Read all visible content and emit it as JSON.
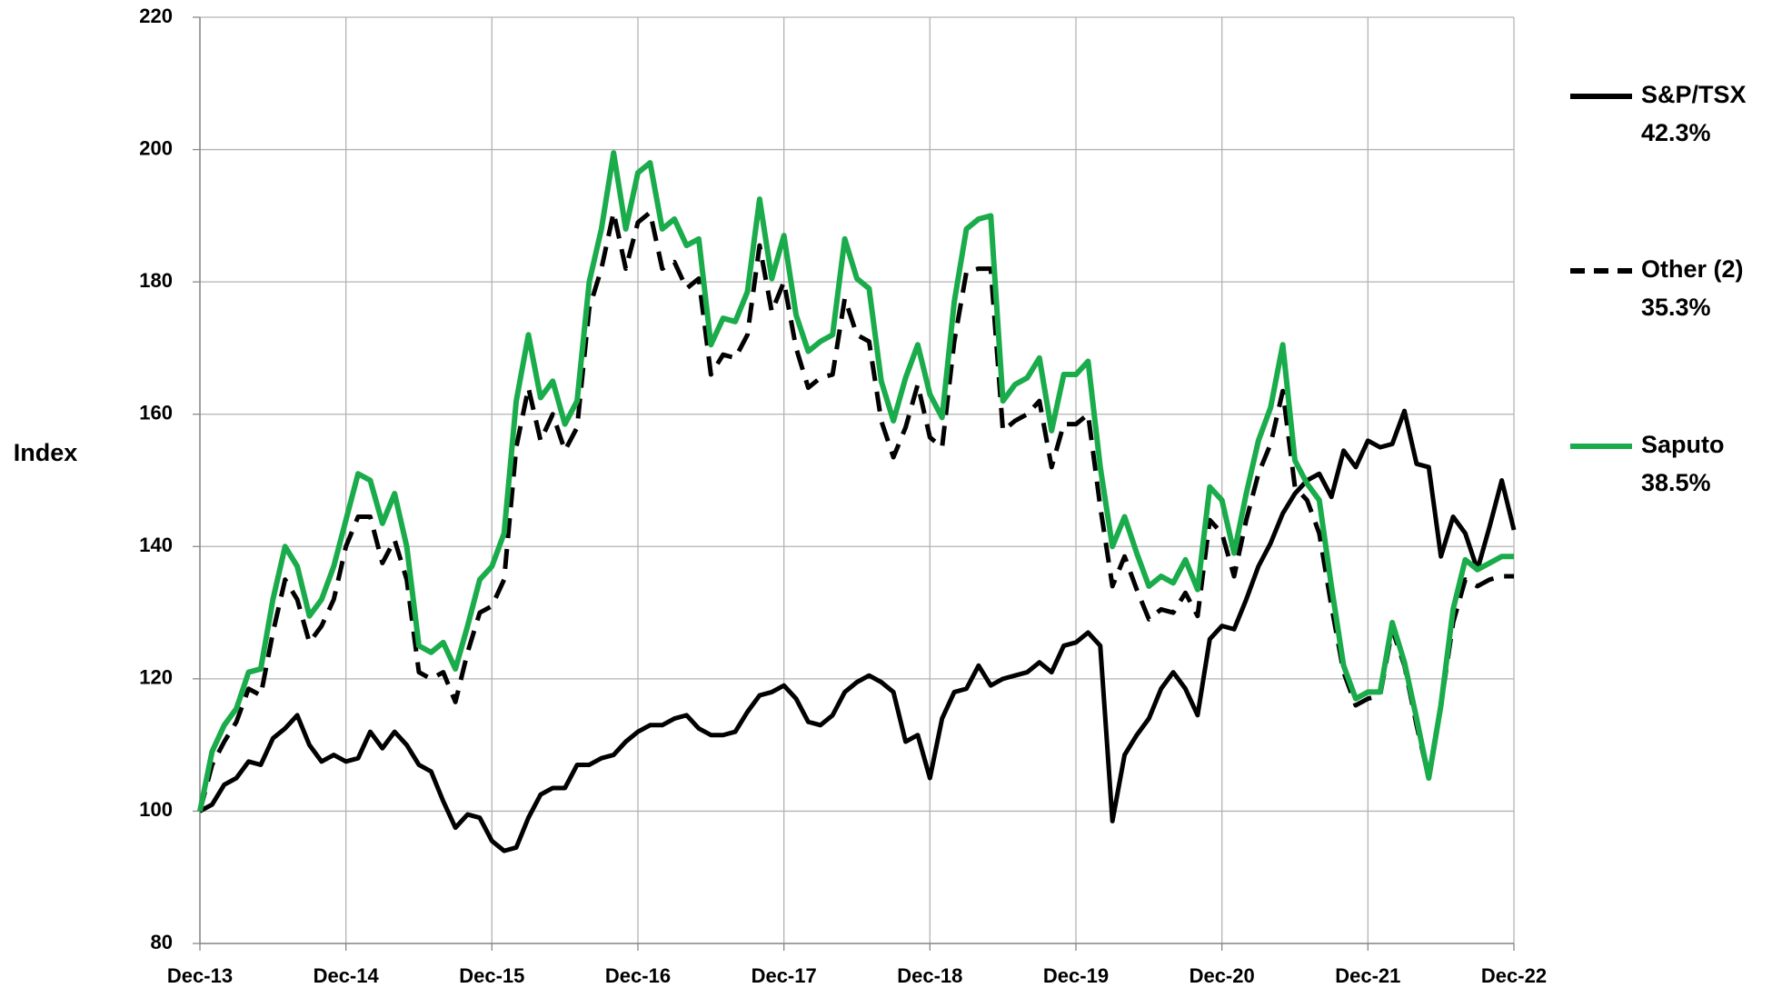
{
  "chart_data": {
    "type": "line",
    "y_label": "Index",
    "categories": [
      "Dec-13",
      null,
      null,
      null,
      null,
      null,
      null,
      null,
      null,
      null,
      null,
      null,
      "Dec-14",
      null,
      null,
      null,
      null,
      null,
      null,
      null,
      null,
      null,
      null,
      null,
      "Dec-15",
      null,
      null,
      null,
      null,
      null,
      null,
      null,
      null,
      null,
      null,
      null,
      "Dec-16",
      null,
      null,
      null,
      null,
      null,
      null,
      null,
      null,
      null,
      null,
      null,
      "Dec-17",
      null,
      null,
      null,
      null,
      null,
      null,
      null,
      null,
      null,
      null,
      null,
      "Dec-18",
      null,
      null,
      null,
      null,
      null,
      null,
      null,
      null,
      null,
      null,
      null,
      "Dec-19",
      null,
      null,
      null,
      null,
      null,
      null,
      null,
      null,
      null,
      null,
      null,
      "Dec-20",
      null,
      null,
      null,
      null,
      null,
      null,
      null,
      null,
      null,
      null,
      null,
      "Dec-21",
      null,
      null,
      null,
      null,
      null,
      null,
      null,
      null,
      null,
      null,
      null,
      "Dec-22"
    ],
    "series": [
      {
        "name": "S&P/TSX",
        "label": "42.3%",
        "color": "#000000",
        "style": "solid",
        "values": [
          100,
          101,
          104,
          105,
          107.5,
          107,
          111,
          112.5,
          114.5,
          110,
          107.5,
          108.5,
          107.5,
          108,
          112,
          109.5,
          112,
          110,
          107,
          106,
          101.5,
          97.5,
          99.5,
          99,
          95.5,
          94,
          94.5,
          99,
          102.5,
          103.5,
          103.5,
          107,
          107,
          108,
          108.5,
          110.5,
          112,
          113,
          113,
          114,
          114.5,
          112.5,
          111.5,
          111.5,
          112,
          115,
          117.5,
          118,
          119,
          117,
          113.5,
          113,
          114.5,
          118,
          119.5,
          120.5,
          119.5,
          118,
          110.5,
          111.5,
          105,
          114,
          118,
          118.5,
          122,
          119,
          120,
          120.5,
          121,
          122.5,
          121,
          125,
          125.5,
          127,
          125,
          98.5,
          108.5,
          111.5,
          114,
          118.5,
          121,
          118.5,
          114.5,
          126,
          128,
          127.5,
          132,
          137,
          140.5,
          145,
          148,
          150,
          151,
          147.5,
          154.5,
          152,
          156,
          155,
          155.5,
          160.5,
          152.5,
          152,
          138.5,
          144.5,
          142,
          136.5,
          143,
          150,
          142.5
        ]
      },
      {
        "name": "Other (2)",
        "label": "35.3%",
        "color": "#000000",
        "style": "dashed",
        "values": [
          100,
          107,
          110.5,
          113.5,
          118.5,
          117.5,
          127,
          135,
          132,
          125.5,
          128,
          132,
          140,
          144.5,
          144.5,
          137.5,
          141,
          135,
          121,
          120,
          121,
          116.5,
          124,
          130,
          131,
          135,
          155,
          164,
          156,
          160,
          154.5,
          158,
          176,
          182,
          190.5,
          182,
          189,
          190.5,
          182,
          183,
          179,
          180.5,
          166,
          169,
          168.5,
          172,
          185.5,
          175.5,
          180,
          170,
          164,
          165.5,
          166,
          177.5,
          172,
          171,
          159,
          153.5,
          158,
          164.5,
          156.5,
          155,
          171,
          181.5,
          182,
          182,
          157.5,
          159,
          160,
          162,
          152,
          158.5,
          158.5,
          160,
          146,
          134,
          138.5,
          133.5,
          129,
          130.5,
          130,
          133,
          129.5,
          144,
          142,
          135.5,
          144,
          151,
          155.5,
          163.5,
          149,
          147,
          142,
          131,
          121,
          116,
          117,
          117.5,
          127.5,
          122,
          113,
          105,
          116,
          128.5,
          135,
          134,
          135,
          135.5,
          135.5
        ]
      },
      {
        "name": "Saputo",
        "label": "38.5%",
        "color": "#1aab4b",
        "style": "solid",
        "values": [
          100,
          109,
          113,
          115.5,
          121,
          121.5,
          132,
          140,
          137,
          129.5,
          132,
          137,
          144,
          151,
          150,
          143.5,
          148,
          140,
          125,
          124,
          125.5,
          121.5,
          128,
          135,
          137,
          142,
          162,
          172,
          162.5,
          165,
          158.5,
          162,
          180,
          188,
          199.5,
          188,
          196.5,
          198,
          188,
          189.5,
          185.5,
          186.5,
          170.5,
          174.5,
          174,
          178.5,
          192.5,
          180.5,
          187,
          175,
          169.5,
          171,
          172,
          186.5,
          180.5,
          179,
          165,
          159,
          165.5,
          170.5,
          163,
          159.5,
          177,
          188,
          189.5,
          190,
          162,
          164.5,
          165.5,
          168.5,
          157.5,
          166,
          166,
          168,
          152,
          140,
          144.5,
          139,
          134,
          135.5,
          134.5,
          138,
          133.5,
          149,
          147,
          139,
          148,
          156,
          161,
          170.5,
          153,
          149.5,
          147,
          134,
          122,
          117,
          118,
          118,
          128.5,
          122.5,
          114,
          105,
          116,
          130.5,
          138,
          136.5,
          137.5,
          138.5,
          138.5
        ]
      }
    ],
    "ylim": [
      80,
      220
    ],
    "yticks": [
      80,
      100,
      120,
      140,
      160,
      180,
      200,
      220
    ],
    "grid": true,
    "legend": "right"
  }
}
